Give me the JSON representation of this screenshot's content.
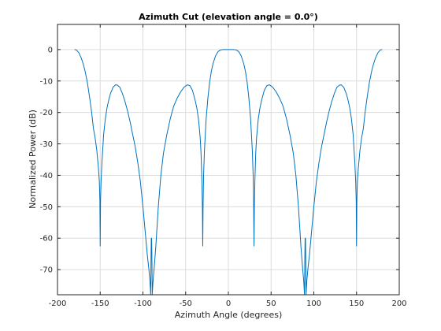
{
  "chart_data": {
    "type": "line",
    "title": "Azimuth Cut (elevation angle = 0.0°)",
    "xlabel": "Azimuth Angle (degrees)",
    "ylabel": "Normalized Power (dB)",
    "xlim": [
      -200,
      200
    ],
    "ylim": [
      -78,
      8
    ],
    "xticks": [
      -200,
      -150,
      -100,
      -50,
      0,
      50,
      100,
      150,
      200
    ],
    "yticks": [
      -70,
      -60,
      -50,
      -40,
      -30,
      -20,
      -10,
      0
    ],
    "grid": true,
    "series": [
      {
        "color": "#0072bd",
        "x": [
          -180,
          -178,
          -175,
          -172,
          -170,
          -168,
          -165,
          -162,
          -160,
          -158,
          -156,
          -154,
          -152,
          -151,
          -150.4,
          -150,
          -149.6,
          -149,
          -148,
          -146,
          -144,
          -142,
          -140,
          -138,
          -135,
          -132,
          -130,
          -127,
          -124,
          -121,
          -118,
          -115,
          -112,
          -109,
          -106,
          -103,
          -100,
          -97,
          -95,
          -93,
          -92,
          -91.3,
          -90.9,
          -90.5,
          -90.2,
          -90,
          -89.8,
          -89.5,
          -89.1,
          -88.7,
          -88,
          -87,
          -85,
          -82,
          -79,
          -76,
          -72,
          -68,
          -64,
          -60,
          -56,
          -52,
          -48,
          -45,
          -42,
          -39,
          -37,
          -35,
          -33,
          -32,
          -31,
          -30.4,
          -30,
          -29.6,
          -29,
          -28,
          -26,
          -24,
          -22,
          -20,
          -18,
          -15,
          -12,
          -9,
          -6,
          -3,
          0,
          3,
          6,
          9,
          12,
          15,
          18,
          20,
          22,
          24,
          26,
          28,
          29,
          29.6,
          30,
          30.4,
          31,
          32,
          33,
          35,
          37,
          39,
          42,
          45,
          48,
          52,
          56,
          60,
          64,
          68,
          72,
          76,
          79,
          82,
          85,
          87,
          88,
          88.7,
          89.1,
          89.5,
          89.8,
          90,
          90.2,
          90.5,
          90.9,
          91.3,
          92,
          93,
          95,
          97,
          100,
          103,
          106,
          109,
          112,
          115,
          118,
          121,
          124,
          127,
          130,
          132,
          135,
          138,
          140,
          142,
          144,
          146,
          148,
          149,
          149.6,
          150,
          150.4,
          151,
          152,
          154,
          156,
          158,
          160,
          162,
          165,
          168,
          170,
          172,
          175,
          178,
          180
        ],
        "y": [
          0,
          -0.1,
          -1,
          -2.8,
          -4.5,
          -6.5,
          -10.5,
          -16,
          -20,
          -25,
          -28,
          -32,
          -38,
          -42,
          -48,
          -62.5,
          -48,
          -42,
          -36,
          -27,
          -22,
          -18.5,
          -16,
          -14,
          -12,
          -11.2,
          -11.3,
          -12,
          -14,
          -16.5,
          -19.5,
          -23,
          -27,
          -31,
          -36,
          -42,
          -50,
          -59,
          -65,
          -70,
          -73,
          -76,
          -78,
          -66,
          -60,
          -60,
          -60,
          -66,
          -78,
          -76,
          -73,
          -70,
          -63,
          -50,
          -40,
          -33,
          -27,
          -22,
          -18,
          -15.5,
          -13.5,
          -12,
          -11.2,
          -11.5,
          -13,
          -16,
          -18.5,
          -22,
          -28,
          -33,
          -42,
          -50,
          -62.5,
          -50,
          -40,
          -32,
          -22,
          -15.5,
          -10.5,
          -7,
          -4.5,
          -2,
          -0.6,
          -0.1,
          0,
          0,
          0,
          0,
          0,
          -0.1,
          -0.6,
          -2,
          -4.5,
          -7,
          -10.5,
          -15.5,
          -22,
          -32,
          -40,
          -50,
          -62.5,
          -50,
          -42,
          -33,
          -28,
          -22,
          -18.5,
          -16,
          -13,
          -11.5,
          -11.2,
          -12,
          -13.5,
          -15.5,
          -18,
          -22,
          -27,
          -33,
          -40,
          -50,
          -63,
          -70,
          -73,
          -76,
          -78,
          -66,
          -60,
          -60,
          -60,
          -66,
          -78,
          -76,
          -73,
          -70,
          -65,
          -59,
          -50,
          -42,
          -36,
          -31,
          -27,
          -23,
          -19.5,
          -16.5,
          -14,
          -12,
          -11.3,
          -11.2,
          -12,
          -14,
          -16,
          -18.5,
          -22,
          -27,
          -36,
          -42,
          -48,
          -62.5,
          -48,
          -42,
          -38,
          -32,
          -28,
          -25,
          -20,
          -16,
          -10.5,
          -6.5,
          -4.5,
          -2.8,
          -1,
          -0.1,
          0
        ]
      }
    ]
  }
}
